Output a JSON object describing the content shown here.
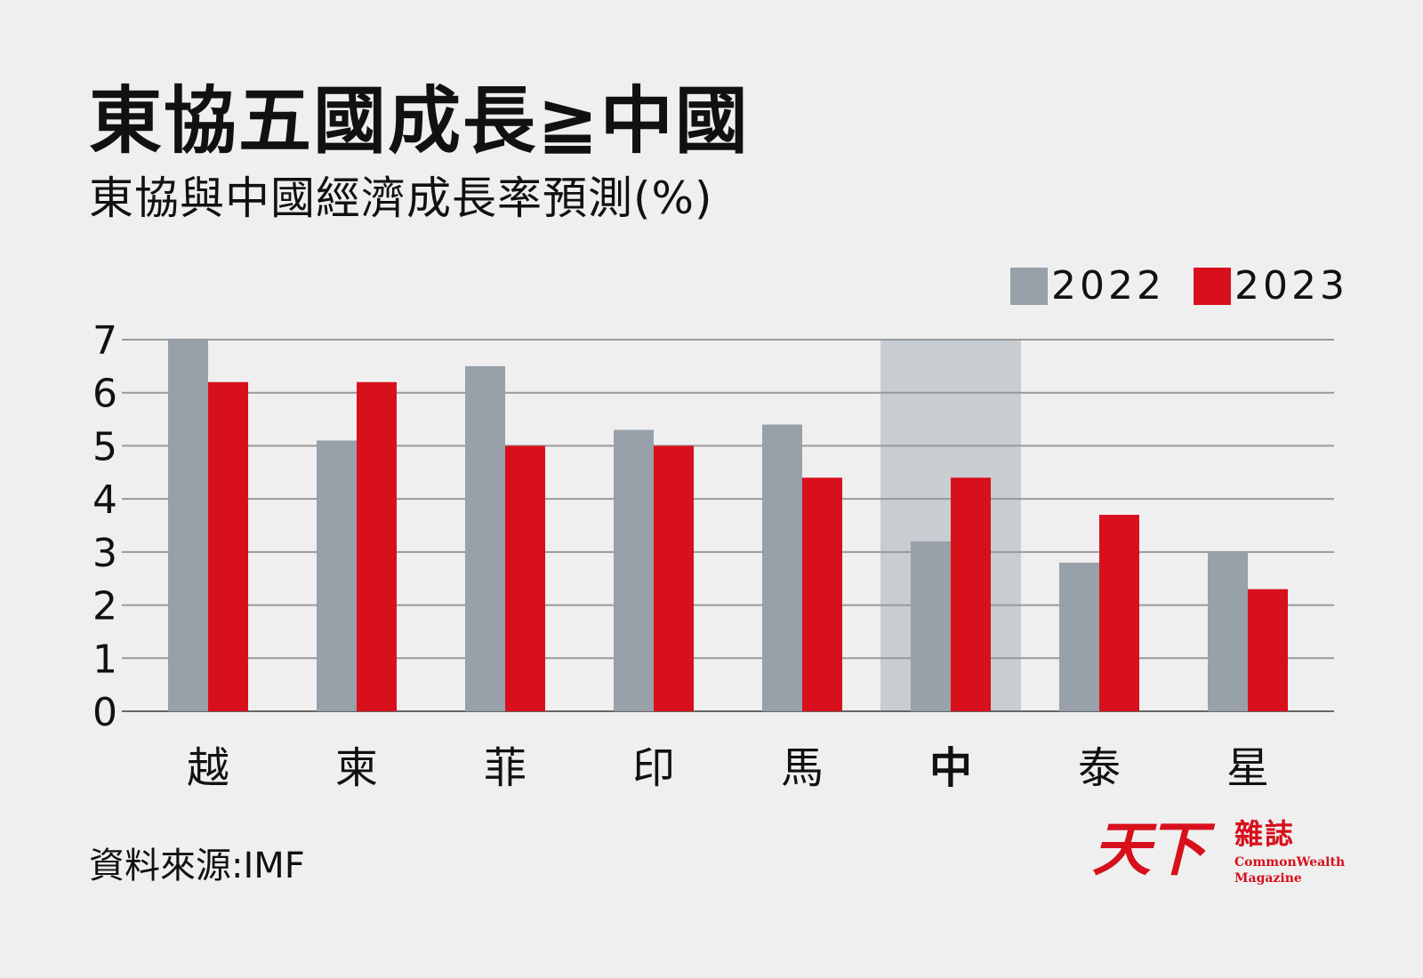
{
  "header": {
    "title": "東協五國成長≧中國",
    "subtitle": "東協與中國經濟成長率預測(%)"
  },
  "footer": {
    "source": "資料來源:IMF",
    "logo_main": "天下",
    "logo_zh": "雜誌",
    "logo_en_line1": "CommonWealth",
    "logo_en_line2": "Magazine"
  },
  "colors": {
    "series_2022": "#98a0a9",
    "series_2023": "#d7101c",
    "highlight_band": "#c8cdd2",
    "gridline": "#999999",
    "axis": "#666666",
    "background": "#efefef"
  },
  "chart_data": {
    "type": "bar",
    "title": "東協五國成長≧中國",
    "subtitle": "東協與中國經濟成長率預測(%)",
    "categories": [
      "越",
      "柬",
      "菲",
      "印",
      "馬",
      "中",
      "泰",
      "星"
    ],
    "highlight_category": "中",
    "series": [
      {
        "name": "2022",
        "values": [
          7.0,
          5.1,
          6.5,
          5.3,
          5.4,
          3.2,
          2.8,
          3.0
        ]
      },
      {
        "name": "2023",
        "values": [
          6.2,
          6.2,
          5.0,
          5.0,
          4.4,
          4.4,
          3.7,
          2.3
        ]
      }
    ],
    "yticks": [
      "0",
      "1",
      "2",
      "3",
      "4",
      "5",
      "6",
      "7"
    ],
    "ylim": [
      0,
      7
    ],
    "xlabel": "",
    "ylabel": "",
    "grid": true,
    "legend_position": "top-right"
  }
}
